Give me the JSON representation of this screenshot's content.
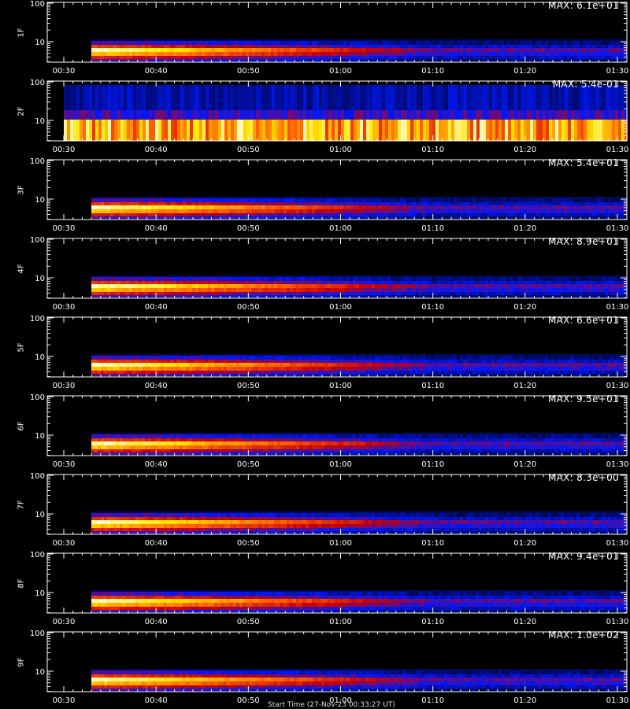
{
  "chart_data": [
    {
      "type": "heatmap",
      "channel": "1F",
      "max_text": "MAX: 6.1e+01",
      "yticks": [
        "100",
        "10"
      ],
      "x_ticks": [
        "00:30",
        "00:40",
        "00:50",
        "01:00",
        "01:10",
        "01:20",
        "01:30"
      ],
      "data_start": "00:33",
      "colormap": [
        "#000010",
        "#0018ff",
        "#cc0000",
        "#ff6600",
        "#ffe600",
        "#ffffff"
      ],
      "band": {
        "peak": 1.0
      }
    },
    {
      "type": "heatmap",
      "channel": "2F",
      "max_text": "MAX: 5.4e-01",
      "yticks": [
        "100",
        "10"
      ],
      "x_ticks": [
        "00:30",
        "00:40",
        "00:50",
        "01:00",
        "01:10",
        "01:20",
        "01:30"
      ],
      "data_start": "00:30",
      "colormap": [
        "#000010",
        "#0018ff",
        "#cc0000",
        "#ff6600",
        "#ffe600",
        "#ffffff"
      ],
      "band": {
        "peak": 0.9
      }
    },
    {
      "type": "heatmap",
      "channel": "3F",
      "max_text": "MAX: 5.4e+01",
      "yticks": [
        "100",
        "10"
      ],
      "x_ticks": [
        "00:30",
        "00:40",
        "00:50",
        "01:00",
        "01:10",
        "01:20",
        "01:30"
      ],
      "data_start": "00:33",
      "colormap": [
        "#000010",
        "#0018ff",
        "#cc0000",
        "#ff6600",
        "#ffe600",
        "#ffffff"
      ],
      "band": {
        "peak": 1.0
      }
    },
    {
      "type": "heatmap",
      "channel": "4F",
      "max_text": "MAX: 8.9e+01",
      "yticks": [
        "100",
        "10"
      ],
      "x_ticks": [
        "00:30",
        "00:40",
        "00:50",
        "01:00",
        "01:10",
        "01:20",
        "01:30"
      ],
      "data_start": "00:33",
      "colormap": [
        "#000010",
        "#0018ff",
        "#cc0000",
        "#ff6600",
        "#ffe600",
        "#ffffff"
      ],
      "band": {
        "peak": 1.0
      }
    },
    {
      "type": "heatmap",
      "channel": "5F",
      "max_text": "MAX: 6.6e+01",
      "yticks": [
        "100",
        "10"
      ],
      "x_ticks": [
        "00:30",
        "00:40",
        "00:50",
        "01:00",
        "01:10",
        "01:20",
        "01:30"
      ],
      "data_start": "00:33",
      "colormap": [
        "#000010",
        "#0018ff",
        "#cc0000",
        "#ff6600",
        "#ffe600",
        "#ffffff"
      ],
      "band": {
        "peak": 1.0
      }
    },
    {
      "type": "heatmap",
      "channel": "6F",
      "max_text": "MAX: 9.5e+01",
      "yticks": [
        "100",
        "10"
      ],
      "x_ticks": [
        "00:30",
        "00:40",
        "00:50",
        "01:00",
        "01:10",
        "01:20",
        "01:30"
      ],
      "data_start": "00:33",
      "colormap": [
        "#000010",
        "#0018ff",
        "#cc0000",
        "#ff6600",
        "#ffe600",
        "#ffffff"
      ],
      "band": {
        "peak": 1.0
      }
    },
    {
      "type": "heatmap",
      "channel": "7F",
      "max_text": "MAX: 8.3e+00",
      "yticks": [
        "100",
        "10"
      ],
      "x_ticks": [
        "00:30",
        "00:40",
        "00:50",
        "01:00",
        "01:10",
        "01:20",
        "01:30"
      ],
      "data_start": "00:33",
      "colormap": [
        "#000010",
        "#0018ff",
        "#cc0000",
        "#ff6600",
        "#ffe600",
        "#ffffff"
      ],
      "band": {
        "peak": 0.9
      }
    },
    {
      "type": "heatmap",
      "channel": "8F",
      "max_text": "MAX: 9.4e+01",
      "yticks": [
        "100",
        "10"
      ],
      "x_ticks": [
        "00:30",
        "00:40",
        "00:50",
        "01:00",
        "01:10",
        "01:20",
        "01:30"
      ],
      "data_start": "00:33",
      "colormap": [
        "#000010",
        "#0018ff",
        "#cc0000",
        "#ff6600",
        "#ffe600",
        "#ffffff"
      ],
      "band": {
        "peak": 1.0
      }
    },
    {
      "type": "heatmap",
      "channel": "9F",
      "max_text": "MAX: 1.0e+02",
      "yticks": [
        "100",
        "10"
      ],
      "x_ticks": [
        "00:30",
        "00:40",
        "00:50",
        "01:00",
        "01:10",
        "01:20",
        "01:30"
      ],
      "data_start": "00:33",
      "colormap": [
        "#000010",
        "#0018ff",
        "#cc0000",
        "#ff6600",
        "#ffe600",
        "#ffffff"
      ],
      "band": {
        "peak": 1.0
      }
    }
  ],
  "footer": {
    "text": "Start Time (27-Nov-23 00:33:27 UT)"
  }
}
